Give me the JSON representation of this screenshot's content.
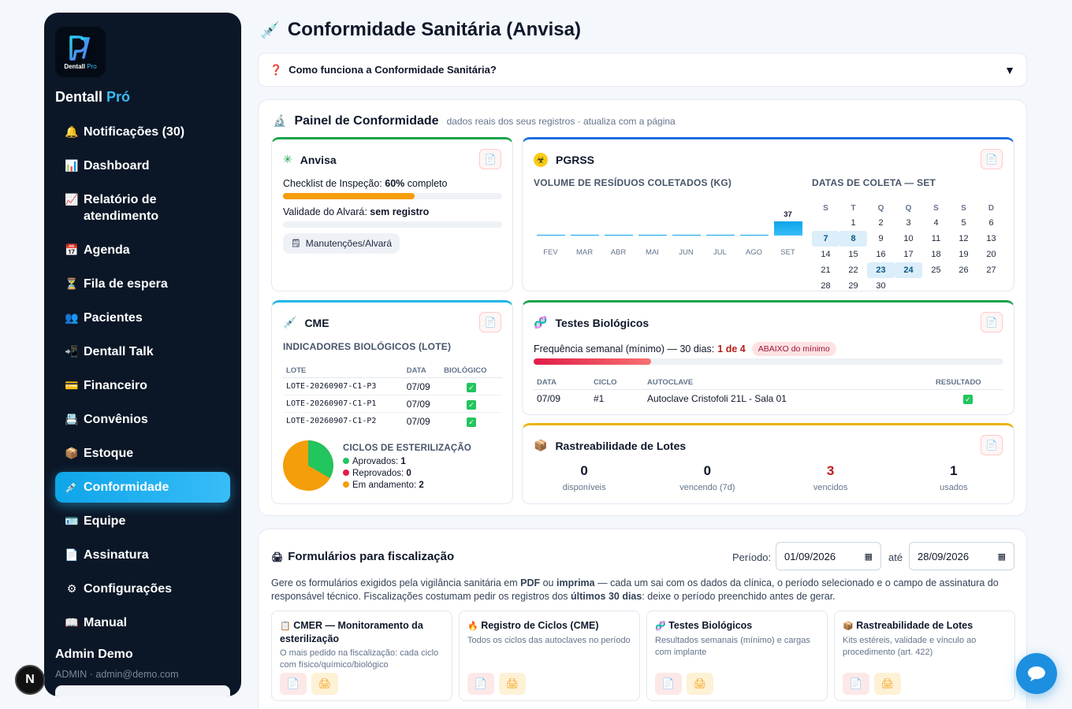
{
  "brand": {
    "logo_text": "Dentall",
    "logo_sub": "Pro",
    "name": "Dentall",
    "name_accent": "Pró"
  },
  "nav": [
    {
      "icon": "bell-icon",
      "glyph": "🔔",
      "label": "Notificações (30)"
    },
    {
      "icon": "chart-icon",
      "glyph": "📊",
      "label": "Dashboard"
    },
    {
      "icon": "trend-icon",
      "glyph": "📈",
      "label": "Relatório de atendimento"
    },
    {
      "icon": "calendar-icon",
      "glyph": "📅",
      "label": "Agenda"
    },
    {
      "icon": "hourglass-icon",
      "glyph": "⏳",
      "label": "Fila de espera"
    },
    {
      "icon": "people-icon",
      "glyph": "👥",
      "label": "Pacientes"
    },
    {
      "icon": "talk-icon",
      "glyph": "📲",
      "label": "Dentall Talk"
    },
    {
      "icon": "card-icon",
      "glyph": "💳",
      "label": "Financeiro"
    },
    {
      "icon": "insurance-icon",
      "glyph": "📇",
      "label": "Convênios"
    },
    {
      "icon": "box-icon",
      "glyph": "📦",
      "label": "Estoque"
    },
    {
      "icon": "syringe-icon",
      "glyph": "💉",
      "label": "Conformidade"
    },
    {
      "icon": "id-icon",
      "glyph": "🪪",
      "label": "Equipe"
    },
    {
      "icon": "doc-icon",
      "glyph": "📄",
      "label": "Assinatura"
    },
    {
      "icon": "gear-icon",
      "glyph": "⚙",
      "label": "Configurações"
    },
    {
      "icon": "book-icon",
      "glyph": "📖",
      "label": "Manual"
    }
  ],
  "user": {
    "name": "Admin Demo",
    "sub": "ADMIN · admin@demo.com"
  },
  "dev_badge": "N",
  "page": {
    "title": "Conformidade Sanitária (Anvisa)",
    "faq": "Como funciona a Conformidade Sanitária?"
  },
  "panel": {
    "title": "Painel de Conformidade",
    "subtitle": "dados reais dos seus registros · atualiza com a página"
  },
  "anvisa": {
    "title": "Anvisa",
    "checklist_label": "Checklist de Inspeção:",
    "checklist_pct": "60%",
    "checklist_suffix": "completo",
    "checklist_progress": 0.6,
    "alvara_label": "Validade do Alvará:",
    "alvara_value": "sem registro",
    "chip": "Manutenções/Alvará"
  },
  "pgrss": {
    "title": "PGRSS",
    "chart_title": "VOLUME DE RESÍDUOS COLETADOS (KG)",
    "cal_title": "DATAS DE COLETA — SET",
    "weekdays": [
      "S",
      "T",
      "Q",
      "Q",
      "S",
      "S",
      "D"
    ],
    "weeks": [
      [
        "",
        "1",
        "2",
        "3",
        "4",
        "5",
        "6"
      ],
      [
        "7",
        "8",
        "9",
        "10",
        "11",
        "12",
        "13"
      ],
      [
        "14",
        "15",
        "16",
        "17",
        "18",
        "19",
        "20"
      ],
      [
        "21",
        "22",
        "23",
        "24",
        "25",
        "26",
        "27"
      ],
      [
        "28",
        "29",
        "30",
        "",
        "",
        "",
        ""
      ]
    ],
    "highlighted": [
      "7",
      "8",
      "23",
      "24"
    ]
  },
  "chart_data": {
    "type": "bar",
    "title": "VOLUME DE RESÍDUOS COLETADOS (KG)",
    "categories": [
      "FEV",
      "MAR",
      "ABR",
      "MAI",
      "JUN",
      "JUL",
      "AGO",
      "SET"
    ],
    "values": [
      0,
      0,
      0,
      0,
      0,
      0,
      0,
      37
    ],
    "data_labels": [
      "",
      "",
      "",
      "",
      "",
      "",
      "",
      "37"
    ],
    "ylim": [
      0,
      37
    ],
    "color": "#0ea5e9"
  },
  "cme": {
    "title": "CME",
    "subtitle": "INDICADORES BIOLÓGICOS (LOTE)",
    "headers": [
      "LOTE",
      "DATA",
      "BIOLÓGICO"
    ],
    "rows": [
      {
        "lote": "LOTE-20260907-C1-P3",
        "data": "07/09",
        "ok": "✓"
      },
      {
        "lote": "LOTE-20260907-C1-P1",
        "data": "07/09",
        "ok": "✓"
      },
      {
        "lote": "LOTE-20260907-C1-P2",
        "data": "07/09",
        "ok": "✓"
      }
    ],
    "cycles_title": "CICLOS DE ESTERILIZAÇÃO",
    "cycles": [
      {
        "label": "Aprovados:",
        "value": "1",
        "color": "#22c55e"
      },
      {
        "label": "Reprovados:",
        "value": "0",
        "color": "#e11d48"
      },
      {
        "label": "Em andamento:",
        "value": "2",
        "color": "#f59e0b"
      }
    ]
  },
  "bio": {
    "title": "Testes Biológicos",
    "freq_label": "Frequência semanal (mínimo) — 30 dias:",
    "freq_value": "1 de 4",
    "freq_badge": "ABAIXO do mínimo",
    "progress": 0.25,
    "headers": [
      "DATA",
      "CICLO",
      "AUTOCLAVE",
      "RESULTADO"
    ],
    "rows": [
      {
        "data": "07/09",
        "ciclo": "#1",
        "autoclave": "Autoclave Cristofoli 21L - Sala 01",
        "ok": "✓"
      }
    ]
  },
  "rastreio": {
    "title": "Rastreabilidade de Lotes",
    "stats": [
      {
        "value": "0",
        "label": "disponíveis",
        "color": "#0f172a"
      },
      {
        "value": "0",
        "label": "vencendo (7d)",
        "color": "#0f172a"
      },
      {
        "value": "3",
        "label": "vencidos",
        "color": "#b91c1c"
      },
      {
        "value": "1",
        "label": "usados",
        "color": "#0f172a"
      }
    ]
  },
  "forms": {
    "title": "Formulários para fiscalização",
    "periodo_label": "Período:",
    "date_from": "01/09/2026",
    "ate_label": "até",
    "date_to": "28/09/2026",
    "desc_1": "Gere os formulários exigidos pela vigilância sanitária em ",
    "desc_pdf": "PDF",
    "desc_2": " ou ",
    "desc_imprima": "imprima",
    "desc_3": " — cada um sai com os dados da clínica, o período selecionado e o campo de assinatura do responsável técnico. Fiscalizações costumam pedir os registros dos ",
    "desc_30": "últimos 30 dias",
    "desc_4": ": deixe o período preenchido antes de gerar.",
    "cards": [
      {
        "icon": "clipboard-icon",
        "glyph": "📋",
        "title": "CMER — Monitoramento da esterilização",
        "desc": "O mais pedido na fiscalização: cada ciclo com físico/químico/biológico"
      },
      {
        "icon": "flame-icon",
        "glyph": "🔥",
        "title": "Registro de Ciclos (CME)",
        "desc": "Todos os ciclos das autoclaves no período"
      },
      {
        "icon": "dna-icon",
        "glyph": "🧬",
        "title": "Testes Biológicos",
        "desc": "Resultados semanais (mínimo) e cargas com implante"
      },
      {
        "icon": "package-icon",
        "glyph": "📦",
        "title": "Rastreabilidade de Lotes",
        "desc": "Kits estéreis, validade e vínculo ao procedimento (art. 422)"
      }
    ]
  },
  "colors": {
    "accent": "#38bdf8",
    "anvisa": "#16a34a",
    "pgrss": "#1d6fe0",
    "cme": "#22b5e6",
    "bio": "#16a34a",
    "rastreio": "#eab308"
  }
}
